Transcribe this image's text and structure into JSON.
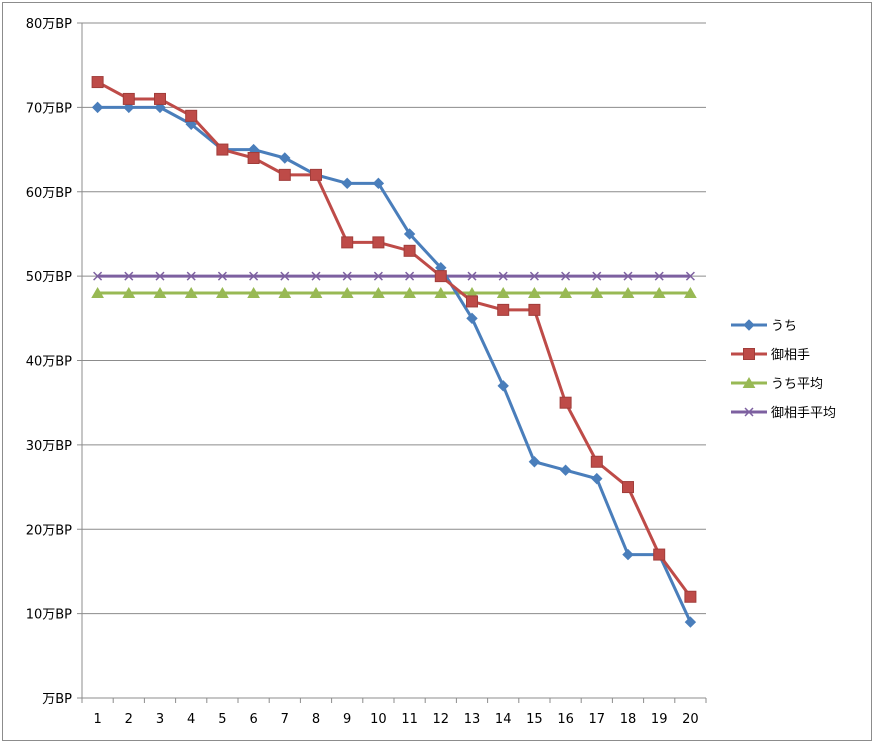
{
  "chart_data": {
    "type": "line",
    "title": "",
    "xlabel": "",
    "ylabel": "",
    "categories": [
      "1",
      "2",
      "3",
      "4",
      "5",
      "6",
      "7",
      "8",
      "9",
      "10",
      "11",
      "12",
      "13",
      "14",
      "15",
      "16",
      "17",
      "18",
      "19",
      "20"
    ],
    "ylim": [
      0,
      80
    ],
    "yticks": [
      0,
      10,
      20,
      30,
      40,
      50,
      60,
      70,
      80
    ],
    "ytick_labels": [
      "万BP",
      "10万BP",
      "20万BP",
      "30万BP",
      "40万BP",
      "50万BP",
      "60万BP",
      "70万BP",
      "80万BP"
    ],
    "grid": true,
    "legend_position": "right",
    "series": [
      {
        "name": "うち",
        "color": "#4a7ebb",
        "marker": "diamond",
        "values": [
          70,
          70,
          70,
          68,
          65,
          65,
          64,
          62,
          61,
          61,
          55,
          51,
          45,
          37,
          28,
          27,
          26,
          17,
          17,
          9
        ]
      },
      {
        "name": "御相手",
        "color": "#be4b48",
        "marker": "square",
        "values": [
          73,
          71,
          71,
          69,
          65,
          64,
          62,
          62,
          54,
          54,
          53,
          50,
          47,
          46,
          46,
          35,
          28,
          25,
          17,
          12
        ]
      },
      {
        "name": "うち平均",
        "color": "#98b954",
        "marker": "triangle",
        "values": [
          48,
          48,
          48,
          48,
          48,
          48,
          48,
          48,
          48,
          48,
          48,
          48,
          48,
          48,
          48,
          48,
          48,
          48,
          48,
          48
        ]
      },
      {
        "name": "御相手平均",
        "color": "#7d60a0",
        "marker": "x",
        "values": [
          50,
          50,
          50,
          50,
          50,
          50,
          50,
          50,
          50,
          50,
          50,
          50,
          50,
          50,
          50,
          50,
          50,
          50,
          50,
          50
        ]
      }
    ]
  }
}
